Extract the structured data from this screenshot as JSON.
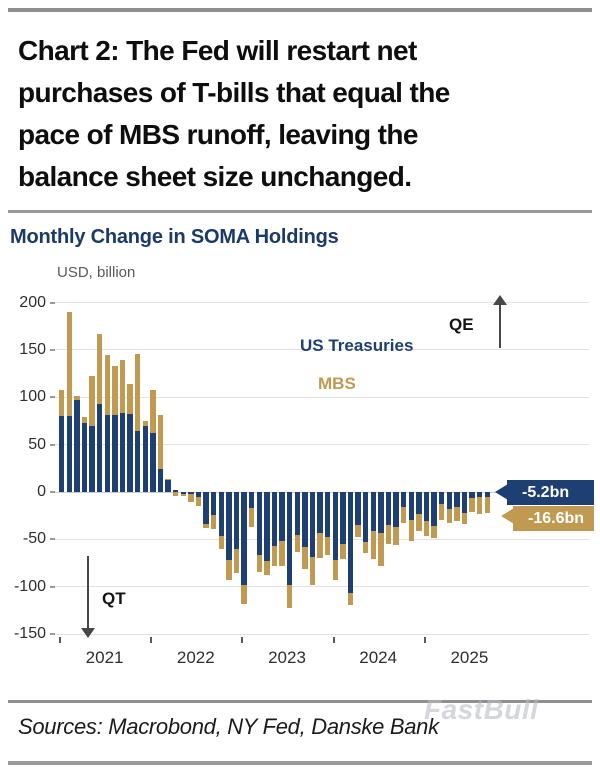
{
  "page": {
    "sources": "Sources: Macrobond, NY Fed, Danske Bank",
    "watermark": "FastBull"
  },
  "caption": {
    "lines": [
      "Chart 2: The Fed will restart net",
      "purchases of T-bills that equal the",
      "pace of MBS runoff, leaving the",
      "balance sheet size unchanged."
    ]
  },
  "chart_data": {
    "type": "bar",
    "stacked": true,
    "title": "Monthly Change in SOMA Holdings",
    "unit_label": "USD, billion",
    "ylim": [
      -150,
      210
    ],
    "yticks": [
      200,
      150,
      100,
      50,
      0,
      -50,
      -100,
      -150
    ],
    "grid": true,
    "legend_position": "inside-top-right",
    "x_year_labels": [
      "2021",
      "2022",
      "2023",
      "2024",
      "2025"
    ],
    "months": [
      "Jan 2021",
      "Feb 2021",
      "Mar 2021",
      "Apr 2021",
      "May 2021",
      "Jun 2021",
      "Jul 2021",
      "Aug 2021",
      "Sep 2021",
      "Oct 2021",
      "Nov 2021",
      "Dec 2021",
      "Jan 2022",
      "Feb 2022",
      "Mar 2022",
      "Apr 2022",
      "May 2022",
      "Jun 2022",
      "Jul 2022",
      "Aug 2022",
      "Sep 2022",
      "Oct 2022",
      "Nov 2022",
      "Dec 2022",
      "Jan 2023",
      "Feb 2023",
      "Mar 2023",
      "Apr 2023",
      "May 2023",
      "Jun 2023",
      "Jul 2023",
      "Aug 2023",
      "Sep 2023",
      "Oct 2023",
      "Nov 2023",
      "Dec 2023",
      "Jan 2024",
      "Feb 2024",
      "Mar 2024",
      "Apr 2024",
      "May 2024",
      "Jun 2024",
      "Jul 2024",
      "Aug 2024",
      "Sep 2024",
      "Oct 2024",
      "Nov 2024",
      "Dec 2024",
      "Jan 2025",
      "Feb 2025",
      "Mar 2025",
      "Apr 2025",
      "May 2025",
      "Jun 2025",
      "Jul 2025",
      "Aug 2025",
      "Sep 2025"
    ],
    "series": [
      {
        "name": "US Treasuries",
        "color": "#1e3f72",
        "values": [
          80,
          80,
          97,
          73,
          70,
          93,
          81,
          81,
          83,
          82,
          64,
          70,
          62,
          24,
          13,
          2,
          -2,
          -2,
          -5,
          -34,
          -24,
          -46,
          -72,
          -60,
          -98,
          -17,
          -66,
          -73,
          -57,
          -52,
          -98,
          -45,
          -58,
          -69,
          -43,
          -48,
          -72,
          -55,
          -107,
          -35,
          -53,
          -41,
          -43,
          -35,
          -37,
          -16,
          -30,
          -23,
          -31,
          -36,
          -13,
          -18,
          -16,
          -22,
          -6,
          -5,
          -5.2
        ]
      },
      {
        "name": "MBS",
        "color": "#c19a52",
        "values": [
          28,
          110,
          4,
          6,
          53,
          74,
          64,
          52,
          56,
          32,
          82,
          5,
          46,
          57,
          1,
          -4,
          -2,
          -9,
          -10,
          -4,
          -15,
          -14,
          -21,
          -26,
          -20,
          -20,
          -18,
          -15,
          -21,
          -26,
          -25,
          -18,
          -23,
          -29,
          -27,
          -19,
          -21,
          -16,
          -12,
          -13,
          -11,
          -30,
          -35,
          -20,
          -19,
          -17,
          -22,
          -18,
          -15,
          -13,
          -17,
          -15,
          -15,
          -12,
          -15,
          -18,
          -16.6
        ]
      }
    ],
    "annotations": {
      "qe": "QE",
      "qt": "QT",
      "callout_treasuries": "-5.2bn",
      "callout_mbs": "-16.6bn"
    }
  },
  "colors": {
    "treasuries": "#1e3f72",
    "mbs": "#c19a52",
    "chart_title": "#1b3a66",
    "gridline": "#e2e2e2",
    "rule": "#8f8f8f"
  }
}
